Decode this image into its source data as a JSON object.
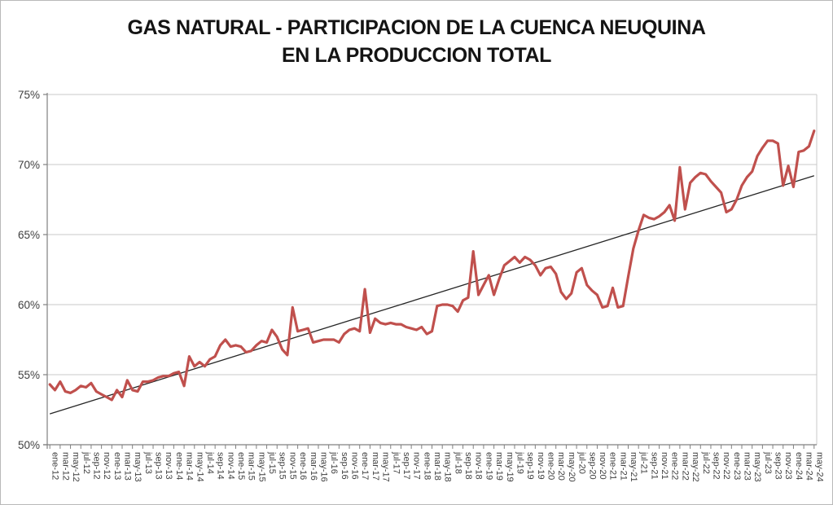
{
  "window": {
    "background": "#ffffff",
    "border_color": "#b9b9b9"
  },
  "chart": {
    "title_line1": "GAS NATURAL - PARTICIPACION DE LA CUENCA NEUQUINA",
    "title_line2": "EN LA PRODUCCION TOTAL"
  },
  "chart_data": {
    "type": "line",
    "title": "GAS NATURAL - PARTICIPACION DE LA CUENCA NEUQUINA EN LA PRODUCCION TOTAL",
    "xlabel": "",
    "ylabel": "",
    "ylim": [
      50,
      75
    ],
    "yticks": [
      50,
      55,
      60,
      65,
      70,
      75
    ],
    "ytick_format": "percent",
    "x_label_every": 2,
    "grid": "horizontal",
    "legend": "none",
    "x": [
      "ene-12",
      "feb-12",
      "mar-12",
      "abr-12",
      "may-12",
      "jun-12",
      "jul-12",
      "ago-12",
      "sep-12",
      "oct-12",
      "nov-12",
      "dic-12",
      "ene-13",
      "feb-13",
      "mar-13",
      "abr-13",
      "may-13",
      "jun-13",
      "jul-13",
      "ago-13",
      "sep-13",
      "oct-13",
      "nov-13",
      "dic-13",
      "ene-14",
      "feb-14",
      "mar-14",
      "abr-14",
      "may-14",
      "jun-14",
      "jul-14",
      "ago-14",
      "sep-14",
      "oct-14",
      "nov-14",
      "dic-14",
      "ene-15",
      "feb-15",
      "mar-15",
      "abr-15",
      "may-15",
      "jun-15",
      "jul-15",
      "ago-15",
      "sep-15",
      "oct-15",
      "nov-15",
      "dic-15",
      "ene-16",
      "feb-16",
      "mar-16",
      "abr-16",
      "may-16",
      "jun-16",
      "jul-16",
      "ago-16",
      "sep-16",
      "oct-16",
      "nov-16",
      "dic-16",
      "ene-17",
      "feb-17",
      "mar-17",
      "abr-17",
      "may-17",
      "jun-17",
      "jul-17",
      "ago-17",
      "sep-17",
      "oct-17",
      "nov-17",
      "dic-17",
      "ene-18",
      "feb-18",
      "mar-18",
      "abr-18",
      "may-18",
      "jun-18",
      "jul-18",
      "ago-18",
      "sep-18",
      "oct-18",
      "nov-18",
      "dic-18",
      "ene-19",
      "feb-19",
      "mar-19",
      "abr-19",
      "may-19",
      "jun-19",
      "jul-19",
      "ago-19",
      "sep-19",
      "oct-19",
      "nov-19",
      "dic-19",
      "ene-20",
      "feb-20",
      "mar-20",
      "abr-20",
      "may-20",
      "jun-20",
      "jul-20",
      "ago-20",
      "sep-20",
      "oct-20",
      "nov-20",
      "dic-20",
      "ene-21",
      "feb-21",
      "mar-21",
      "abr-21",
      "may-21",
      "jun-21",
      "jul-21",
      "ago-21",
      "sep-21",
      "oct-21",
      "nov-21",
      "dic-21",
      "ene-22",
      "feb-22",
      "mar-22",
      "abr-22",
      "may-22",
      "jun-22",
      "jul-22",
      "ago-22",
      "sep-22",
      "oct-22",
      "nov-22",
      "dic-22",
      "ene-23",
      "feb-23",
      "mar-23",
      "abr-23",
      "may-23",
      "jun-23",
      "jul-23",
      "ago-23",
      "sep-23",
      "oct-23",
      "nov-23",
      "dic-23",
      "ene-24",
      "feb-24",
      "mar-24",
      "abr-24",
      "may-24"
    ],
    "series": [
      {
        "name": "participacion-cuenca-neuquina",
        "color": "#c0504d",
        "values": [
          54.3,
          53.9,
          54.5,
          53.8,
          53.7,
          53.9,
          54.2,
          54.1,
          54.4,
          53.8,
          53.6,
          53.4,
          53.2,
          53.9,
          53.4,
          54.6,
          53.9,
          53.8,
          54.5,
          54.5,
          54.6,
          54.8,
          54.9,
          54.9,
          55.1,
          55.2,
          54.2,
          56.3,
          55.6,
          55.9,
          55.6,
          56.1,
          56.3,
          57.1,
          57.5,
          57.0,
          57.1,
          57.0,
          56.6,
          56.7,
          57.1,
          57.4,
          57.3,
          58.2,
          57.7,
          56.8,
          56.4,
          59.8,
          58.1,
          58.2,
          58.3,
          57.3,
          57.4,
          57.5,
          57.5,
          57.5,
          57.3,
          57.9,
          58.2,
          58.3,
          58.1,
          61.1,
          58.0,
          59.0,
          58.7,
          58.6,
          58.7,
          58.6,
          58.6,
          58.4,
          58.3,
          58.2,
          58.4,
          57.9,
          58.1,
          59.9,
          60.0,
          60.0,
          59.9,
          59.5,
          60.3,
          60.5,
          63.8,
          60.7,
          61.4,
          62.1,
          60.7,
          61.8,
          62.8,
          63.1,
          63.4,
          63.0,
          63.4,
          63.2,
          62.8,
          62.1,
          62.6,
          62.7,
          62.2,
          60.9,
          60.4,
          60.8,
          62.3,
          62.6,
          61.4,
          61.0,
          60.7,
          59.8,
          59.9,
          61.2,
          59.8,
          59.9,
          62.0,
          64.0,
          65.3,
          66.4,
          66.2,
          66.1,
          66.3,
          66.6,
          67.1,
          66.0,
          69.8,
          66.8,
          68.7,
          69.1,
          69.4,
          69.3,
          68.8,
          68.4,
          68.0,
          66.6,
          66.8,
          67.5,
          68.5,
          69.1,
          69.5,
          70.6,
          71.2,
          71.7,
          71.7,
          71.5,
          68.5,
          69.9,
          68.4,
          70.9,
          71.0,
          71.3,
          72.4
        ]
      }
    ],
    "trendline": {
      "name": "tendencia-lineal",
      "color": "#262626",
      "start_value": 52.2,
      "end_value": 69.2
    },
    "colors": {
      "gridline": "#c8c8c8",
      "axis": "#808080",
      "tick_label": "#3f3f3f",
      "plot_right_border": "#c8c8c8"
    }
  }
}
